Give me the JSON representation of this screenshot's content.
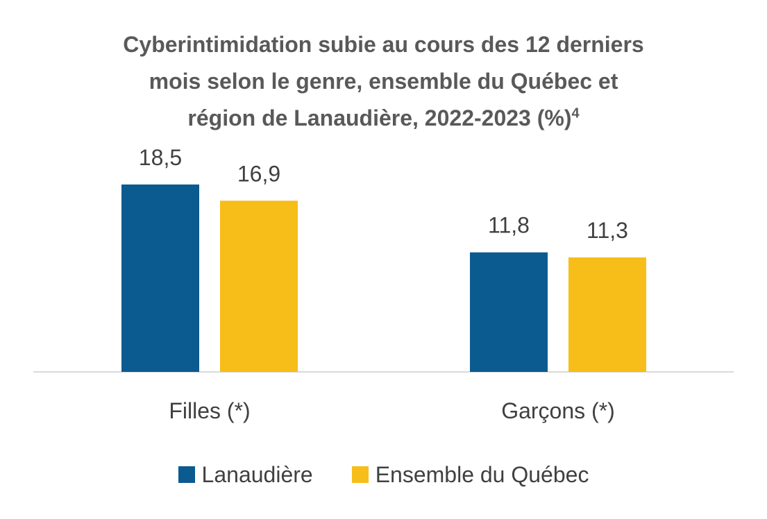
{
  "chart_data": {
    "type": "bar",
    "title_lines": [
      "Cyberintimidation subie au cours des 12 derniers",
      "mois selon le genre, ensemble du Québec et",
      "région de Lanaudière, 2022-2023 (%)"
    ],
    "title_superscript": "4",
    "categories": [
      "Filles (*)",
      "Garçons (*)"
    ],
    "series": [
      {
        "name": "Lanaudière",
        "values": [
          18.5,
          11.8
        ],
        "labels": [
          "18,5",
          "11,8"
        ],
        "color": "#0b5a90"
      },
      {
        "name": "Ensemble du Québec",
        "values": [
          16.9,
          11.3
        ],
        "labels": [
          "16,9",
          "11,3"
        ],
        "color": "#f7bd19"
      }
    ],
    "ylim": [
      0,
      20
    ],
    "grid": false,
    "legend_position": "bottom",
    "axis_color": "#d9d9d9"
  }
}
